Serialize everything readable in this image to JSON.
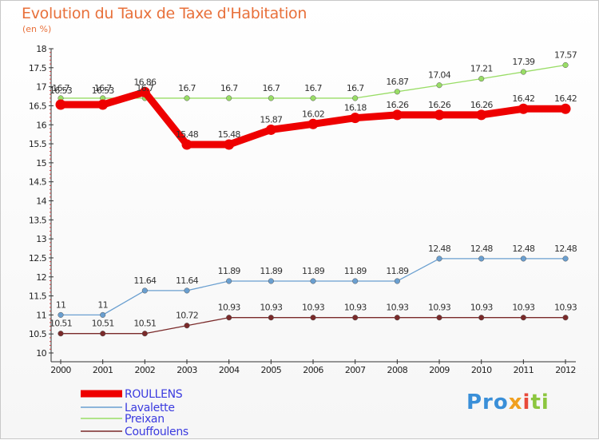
{
  "title": "Evolution du Taux de Taxe d'Habitation",
  "subtitle": "(en %)",
  "logo": {
    "c1": "Pro",
    "c2": "x",
    "c3": "i",
    "c4": "ti"
  },
  "chart_data": {
    "type": "line",
    "x": [
      "2000",
      "2001",
      "2002",
      "2003",
      "2004",
      "2005",
      "2006",
      "2007",
      "2008",
      "2009",
      "2010",
      "2011",
      "2012"
    ],
    "ylim": [
      10,
      18
    ],
    "yticks": [
      "10",
      "10.5",
      "11",
      "11.5",
      "12",
      "12.5",
      "13",
      "13.5",
      "14",
      "14.5",
      "15",
      "15.5",
      "16",
      "16.5",
      "17",
      "17.5",
      "18"
    ],
    "grid": false,
    "legend_position": "bottom-left",
    "series": [
      {
        "name": "ROULLENS",
        "color": "#ee0000",
        "width": 9,
        "values": [
          16.53,
          16.53,
          16.86,
          15.48,
          15.48,
          15.87,
          16.02,
          16.18,
          16.26,
          16.26,
          16.26,
          16.42,
          16.42
        ],
        "labels": [
          "16.53",
          "16.53",
          "16.86",
          "15.48",
          "15.48",
          "15.87",
          "16.02",
          "16.18",
          "16.26",
          "16.26",
          "16.26",
          "16.42",
          "16.42"
        ]
      },
      {
        "name": "Lavalette",
        "color": "#6a9fd0",
        "width": 1.3,
        "values": [
          11,
          11,
          11.64,
          11.64,
          11.89,
          11.89,
          11.89,
          11.89,
          11.89,
          12.48,
          12.48,
          12.48,
          12.48
        ],
        "labels": [
          "11",
          "11",
          "11.64",
          "11.64",
          "11.89",
          "11.89",
          "11.89",
          "11.89",
          "11.89",
          "12.48",
          "12.48",
          "12.48",
          "12.48"
        ]
      },
      {
        "name": "Preixan",
        "color": "#99dd66",
        "width": 1.3,
        "values": [
          16.7,
          16.7,
          16.7,
          16.7,
          16.7,
          16.7,
          16.7,
          16.7,
          16.87,
          17.04,
          17.21,
          17.39,
          17.57
        ],
        "labels": [
          "16.7",
          "16.7",
          "16.7",
          "16.7",
          "16.7",
          "16.7",
          "16.7",
          "16.7",
          "16.87",
          "17.04",
          "17.21",
          "17.39",
          "17.57"
        ]
      },
      {
        "name": "Couffoulens",
        "color": "#7a2a2a",
        "width": 1.3,
        "values": [
          10.51,
          10.51,
          10.51,
          10.72,
          10.93,
          10.93,
          10.93,
          10.93,
          10.93,
          10.93,
          10.93,
          10.93,
          10.93
        ],
        "labels": [
          "10.51",
          "10.51",
          "10.51",
          "10.72",
          "10.93",
          "10.93",
          "10.93",
          "10.93",
          "10.93",
          "10.93",
          "10.93",
          "10.93",
          "10.93"
        ]
      }
    ]
  }
}
